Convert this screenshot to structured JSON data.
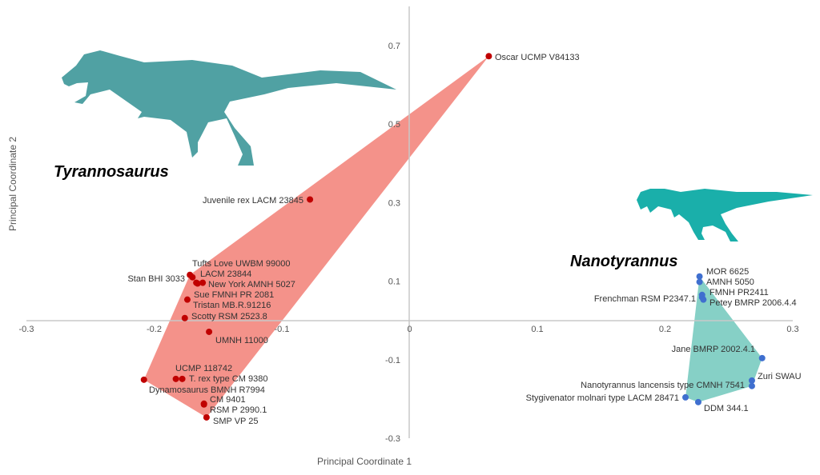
{
  "chart_data": {
    "type": "scatter",
    "xlabel": "Principal Coordinate 1",
    "ylabel": "Principal Coordinate 2",
    "xlim": [
      -0.3,
      0.3
    ],
    "ylim": [
      -0.3,
      0.7
    ],
    "xticks": [
      "-0.3",
      "-0.2",
      "-0.1",
      "0",
      "0.1",
      "0.2",
      "0.3"
    ],
    "yticks": [
      "0.7",
      "0.5",
      "0.3",
      "0.1",
      "-0.1",
      "-0.3"
    ],
    "grid": false,
    "groups": [
      {
        "name": "Tyrannosaurus",
        "color": "#c00000",
        "hull_color": "#f4928a",
        "silhouette_color": "#50a1a3",
        "points": [
          {
            "label": "Oscar UCMP V84133",
            "x": 0.062,
            "y": 0.673,
            "anchor": "right"
          },
          {
            "label": "Juvenile rex LACM 23845",
            "x": -0.078,
            "y": 0.308,
            "anchor": "right"
          },
          {
            "label": "Stan BHI 3033",
            "x": -0.172,
            "y": 0.116,
            "anchor": "left"
          },
          {
            "label": "Tufts Love UWBM 99000",
            "x": -0.17,
            "y": 0.11,
            "anchor": "right-up"
          },
          {
            "label": "LACM 23844",
            "x": -0.167,
            "y": 0.096,
            "anchor": "right-up2"
          },
          {
            "label": "New York AMNH 5027",
            "x": -0.162,
            "y": 0.096,
            "anchor": "right"
          },
          {
            "label": "Sue FMNH PR 2081",
            "x": -0.166,
            "y": 0.094,
            "anchor": "right-down"
          },
          {
            "label": "Tristan  MB.R.91216",
            "x": -0.174,
            "y": 0.053,
            "anchor": "right"
          },
          {
            "label": "Scotty RSM 2523.8",
            "x": -0.176,
            "y": 0.006,
            "anchor": "right"
          },
          {
            "label": "UMNH 11000",
            "x": -0.157,
            "y": -0.029,
            "anchor": "right"
          },
          {
            "label": "UCMP 118742",
            "x": -0.183,
            "y": -0.149,
            "anchor": "right-up"
          },
          {
            "label": "T. rex type CM 9380",
            "x": -0.178,
            "y": -0.149,
            "anchor": "right"
          },
          {
            "label": "Dynamosaurus BMNH R7994",
            "x": -0.208,
            "y": -0.151,
            "anchor": "right-down"
          },
          {
            "label": "CM 9401",
            "x": -0.161,
            "y": -0.212,
            "anchor": "right-up"
          },
          {
            "label": "RSM P 2990.1",
            "x": -0.161,
            "y": -0.214,
            "anchor": "right"
          },
          {
            "label": "SMP VP 25",
            "x": -0.159,
            "y": -0.247,
            "anchor": "right"
          }
        ]
      },
      {
        "name": "Nanotyrannus",
        "color": "#3f6fcf",
        "hull_color": "#86d0c6",
        "silhouette_color": "#1aafaa",
        "points": [
          {
            "label": "MOR 6625",
            "x": 0.227,
            "y": 0.112,
            "anchor": "right-up"
          },
          {
            "label": "AMNH 5050",
            "x": 0.227,
            "y": 0.098,
            "anchor": "right"
          },
          {
            "label": "FMNH PR2411",
            "x": 0.229,
            "y": 0.065,
            "anchor": "right-up"
          },
          {
            "label": "Frenchman RSM P2347.1",
            "x": 0.229,
            "y": 0.059,
            "anchor": "left"
          },
          {
            "label": "Petey BMRP 2006.4.4",
            "x": 0.23,
            "y": 0.053,
            "anchor": "right-down"
          },
          {
            "label": "Jane BMRP 2002.4.1",
            "x": 0.276,
            "y": -0.096,
            "anchor": "left-up"
          },
          {
            "label": "Zuri SWAU",
            "x": 0.268,
            "y": -0.153,
            "anchor": "right-up"
          },
          {
            "label": "Nanotyrannus lancensis type CMNH 7541",
            "x": 0.268,
            "y": -0.167,
            "anchor": "left"
          },
          {
            "label": "Stygivenator molnari type LACM 28471",
            "x": 0.216,
            "y": -0.196,
            "anchor": "left"
          },
          {
            "label": "DDM 344.1",
            "x": 0.226,
            "y": -0.208,
            "anchor": "right-down"
          }
        ]
      }
    ]
  }
}
